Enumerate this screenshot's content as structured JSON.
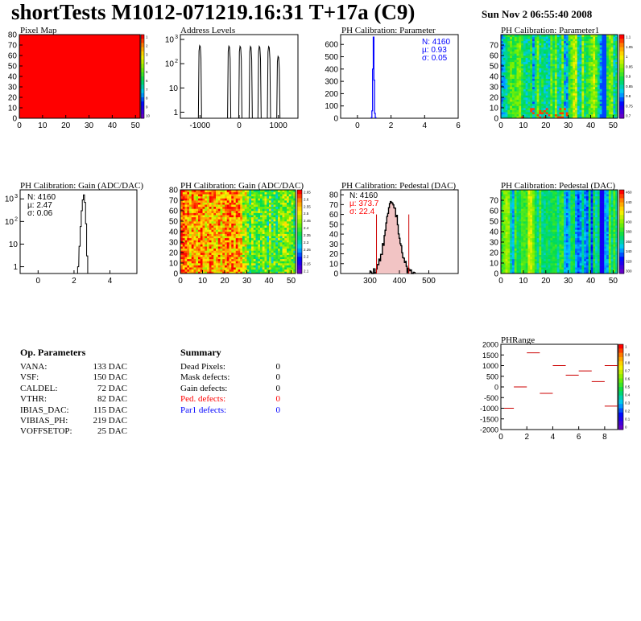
{
  "header": {
    "title": "shortTests M1012-071219.16:31 T+17a (C9)",
    "date": "Sun Nov  2 06:55:40 2008"
  },
  "chart_data": [
    {
      "id": "pixelmap",
      "type": "heatmap",
      "title": "Pixel Map",
      "xlim": [
        0,
        52
      ],
      "ylim": [
        0,
        80
      ],
      "xticks": [
        "0",
        "10",
        "20",
        "30",
        "40",
        "50"
      ],
      "yticks": [
        "0",
        "10",
        "20",
        "30",
        "40",
        "50",
        "60",
        "70",
        "80"
      ],
      "fill_color": "#ff0000",
      "zscale": [
        "1",
        "2",
        "3",
        "4",
        "5",
        "6",
        "7",
        "8",
        "9",
        "10"
      ]
    },
    {
      "id": "addrlevels",
      "type": "line",
      "title": "Address Levels",
      "log_y": true,
      "xlim": [
        -1500,
        1500
      ],
      "xticks": [
        "-1000",
        "0",
        "1000"
      ],
      "yticks": [
        "1",
        "10",
        "10^2",
        "10^3"
      ],
      "peaks": [
        {
          "x": -1000,
          "y": 560
        },
        {
          "x": -255,
          "y": 530
        },
        {
          "x": 30,
          "y": 520
        },
        {
          "x": 295,
          "y": 515
        },
        {
          "x": 520,
          "y": 520
        },
        {
          "x": 760,
          "y": 510
        },
        {
          "x": 1000,
          "y": 200
        }
      ]
    },
    {
      "id": "phparam",
      "type": "bar",
      "title": "PH Calibration: Parameter",
      "xlim": [
        -1,
        6
      ],
      "ylim": [
        0,
        680
      ],
      "xticks": [
        "0",
        "2",
        "4",
        "6"
      ],
      "yticks": [
        "0",
        "100",
        "200",
        "300",
        "400",
        "500",
        "600"
      ],
      "stats": [
        "N: 4160",
        "µ: 0.93",
        "σ: 0.05"
      ],
      "stats_color": "#0000ff",
      "hist": [
        {
          "x": 0.82,
          "y": 5
        },
        {
          "x": 0.86,
          "y": 60
        },
        {
          "x": 0.9,
          "y": 400
        },
        {
          "x": 0.94,
          "y": 660
        },
        {
          "x": 0.98,
          "y": 310
        },
        {
          "x": 1.02,
          "y": 40
        },
        {
          "x": 1.06,
          "y": 5
        }
      ]
    },
    {
      "id": "phparam1",
      "type": "heatmap",
      "title": "PH Calibration: Parameter1",
      "xlim": [
        0,
        52
      ],
      "ylim": [
        0,
        80
      ],
      "xticks": [
        "0",
        "10",
        "20",
        "30",
        "40",
        "50"
      ],
      "yticks": [
        "0",
        "10",
        "20",
        "30",
        "40",
        "50",
        "60",
        "70"
      ],
      "zscale": [
        "1.1",
        "1.05",
        "1",
        "0.95",
        "0.9",
        "0.85",
        "0.8",
        "0.75",
        "0.7"
      ]
    },
    {
      "id": "gainlog",
      "type": "bar",
      "title": "PH Calibration: Gain (ADC/DAC)",
      "log_y": true,
      "xlim": [
        -1,
        5.5
      ],
      "xticks": [
        "0",
        "2",
        "4"
      ],
      "yticks": [
        "1",
        "10",
        "10^2",
        "10^3"
      ],
      "stats": [
        "N: 4160",
        "µ: 2.47",
        "σ: 0.06"
      ],
      "stats_color": "#000000",
      "hist": [
        {
          "x": 2.2,
          "y": 1
        },
        {
          "x": 2.28,
          "y": 8
        },
        {
          "x": 2.34,
          "y": 60
        },
        {
          "x": 2.4,
          "y": 300
        },
        {
          "x": 2.46,
          "y": 900
        },
        {
          "x": 2.52,
          "y": 1500
        },
        {
          "x": 2.58,
          "y": 700
        },
        {
          "x": 2.64,
          "y": 80
        },
        {
          "x": 2.7,
          "y": 3
        }
      ]
    },
    {
      "id": "gainmap",
      "type": "heatmap",
      "title": "PH Calibration: Gain (ADC/DAC)",
      "xlim": [
        0,
        52
      ],
      "ylim": [
        0,
        80
      ],
      "xticks": [
        "0",
        "10",
        "20",
        "30",
        "40",
        "50"
      ],
      "yticks": [
        "0",
        "10",
        "20",
        "30",
        "40",
        "50",
        "60",
        "70",
        "80"
      ],
      "zscale": [
        "2.65",
        "2.6",
        "2.55",
        "2.5",
        "2.45",
        "2.4",
        "2.35",
        "2.3",
        "2.25",
        "2.2",
        "2.15",
        "2.1"
      ]
    },
    {
      "id": "pedestal",
      "type": "bar",
      "title": "PH Calibration: Pedestal (DAC)",
      "xlim": [
        200,
        600
      ],
      "ylim": [
        0,
        85
      ],
      "xticks": [
        "300",
        "400",
        "500"
      ],
      "yticks": [
        "0",
        "10",
        "20",
        "30",
        "40",
        "50",
        "60",
        "70",
        "80"
      ],
      "stats": [
        "N: 4160",
        "µ: 373.7",
        "σ: 22.4"
      ],
      "stats_colors": [
        "#000000",
        "#ff0000",
        "#ff0000"
      ],
      "mean": 373.7,
      "sigma": 22.4,
      "cut_lines": [
        322,
        432
      ]
    },
    {
      "id": "pedmap",
      "type": "heatmap",
      "title": "PH Calibration: Pedestal (DAC)",
      "xlim": [
        0,
        52
      ],
      "ylim": [
        0,
        80
      ],
      "xticks": [
        "0",
        "10",
        "20",
        "30",
        "40",
        "50"
      ],
      "yticks": [
        "0",
        "10",
        "20",
        "30",
        "40",
        "50",
        "60",
        "70"
      ],
      "zscale": [
        "460",
        "440",
        "420",
        "400",
        "380",
        "360",
        "340",
        "320",
        "300"
      ]
    },
    {
      "id": "phrange",
      "type": "scatter",
      "title": "PHRange",
      "xlim": [
        0,
        9
      ],
      "ylim": [
        -2000,
        2000
      ],
      "xticks": [
        "0",
        "2",
        "4",
        "6",
        "8"
      ],
      "yticks": [
        "2000",
        "1500",
        "1000",
        "500",
        "0",
        "-500",
        "-1000",
        "-1500",
        "-2000"
      ],
      "zscale": [
        "1",
        "0.9",
        "0.8",
        "0.7",
        "0.6",
        "0.5",
        "0.4",
        "0.3",
        "0.2",
        "0.1",
        "0"
      ],
      "segments": [
        {
          "x": 0,
          "y": -1000
        },
        {
          "x": 1,
          "y": 0
        },
        {
          "x": 2,
          "y": 1600
        },
        {
          "x": 3,
          "y": -300
        },
        {
          "x": 4,
          "y": 1000
        },
        {
          "x": 5,
          "y": 550
        },
        {
          "x": 6,
          "y": 750
        },
        {
          "x": 7,
          "y": 250
        },
        {
          "x": 8,
          "y": -900
        },
        {
          "x": 8,
          "y": 1000
        }
      ]
    }
  ],
  "op_params": {
    "heading": "Op. Parameters",
    "rows": [
      {
        "name": "VANA:",
        "value": "133 DAC"
      },
      {
        "name": "VSF:",
        "value": "150 DAC"
      },
      {
        "name": "CALDEL:",
        "value": "72 DAC"
      },
      {
        "name": "VTHR:",
        "value": "82 DAC"
      },
      {
        "name": "IBIAS_DAC:",
        "value": "115 DAC"
      },
      {
        "name": "VIBIAS_PH:",
        "value": "219 DAC"
      },
      {
        "name": "VOFFSETOP:",
        "value": "25 DAC"
      }
    ]
  },
  "summary": {
    "heading": "Summary",
    "rows": [
      {
        "name": "Dead Pixels:",
        "value": "0",
        "color": "#000000"
      },
      {
        "name": "Mask defects:",
        "value": "0",
        "color": "#000000"
      },
      {
        "name": "Gain defects:",
        "value": "0",
        "color": "#000000"
      },
      {
        "name": "Ped. defects:",
        "value": "0",
        "color": "#ff0000"
      },
      {
        "name": "Par1 defects:",
        "value": "0",
        "color": "#0000ff"
      }
    ]
  }
}
